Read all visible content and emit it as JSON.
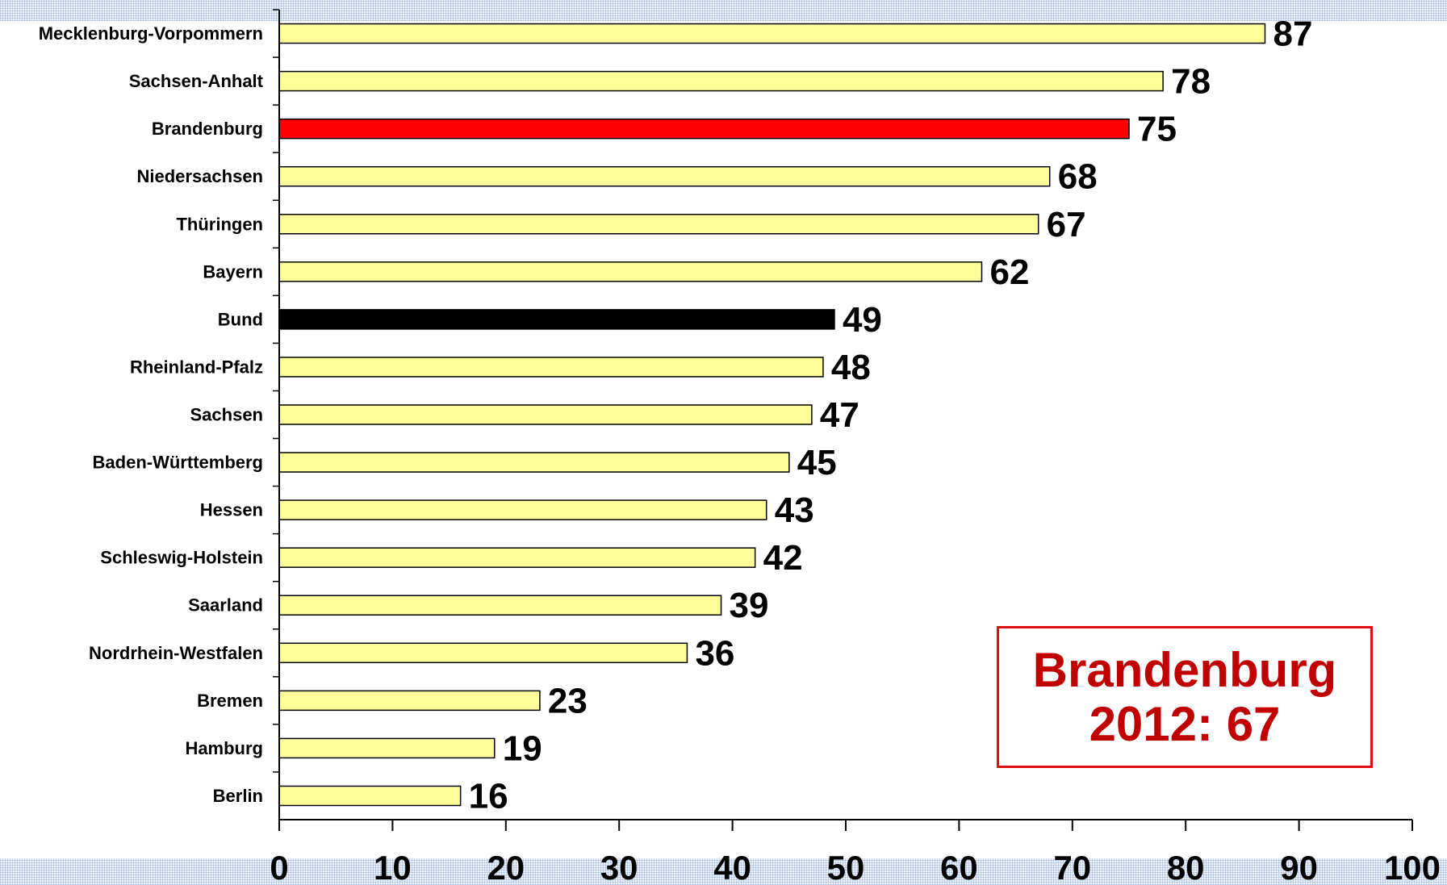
{
  "colors": {
    "default_bar": "#ffff99",
    "highlight_bar": "#ff0000",
    "national_bar": "#000000",
    "callout": "#c00000"
  },
  "callout": {
    "line1": "Brandenburg",
    "line2": "2012: 67"
  },
  "chart_data": {
    "type": "bar",
    "orientation": "horizontal",
    "title": "",
    "xlabel": "",
    "ylabel": "",
    "xlim": [
      0,
      100
    ],
    "x_ticks": [
      "0",
      "10",
      "20",
      "30",
      "40",
      "50",
      "60",
      "70",
      "80",
      "90",
      "100"
    ],
    "grid": false,
    "legend": "none",
    "categories": [
      "Mecklenburg-Vorpommern",
      "Sachsen-Anhalt",
      "Brandenburg",
      "Niedersachsen",
      "Thüringen",
      "Bayern",
      "Bund",
      "Rheinland-Pfalz",
      "Sachsen",
      "Baden-Württemberg",
      "Hessen",
      "Schleswig-Holstein",
      "Saarland",
      "Nordrhein-Westfalen",
      "Bremen",
      "Hamburg",
      "Berlin"
    ],
    "values": [
      87,
      78,
      75,
      68,
      67,
      62,
      49,
      48,
      47,
      45,
      43,
      42,
      39,
      36,
      23,
      19,
      16
    ],
    "highlight": {
      "Brandenburg": "highlight_bar",
      "Bund": "national_bar"
    }
  }
}
